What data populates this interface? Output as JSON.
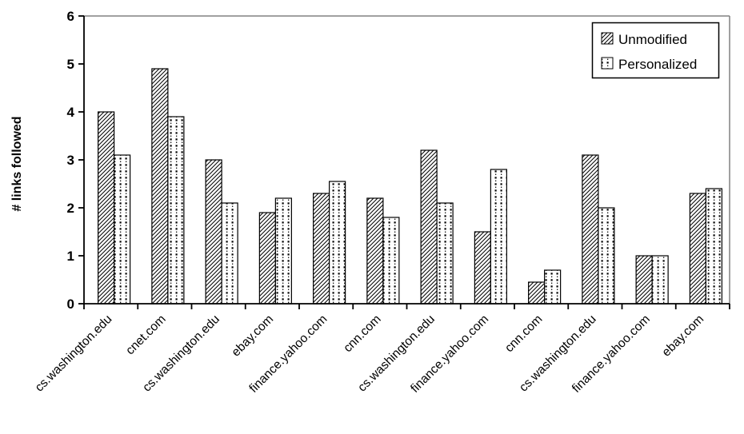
{
  "chart_data": {
    "type": "bar",
    "title": "",
    "xlabel": "",
    "ylabel": "# links followed",
    "ylim": [
      0,
      6
    ],
    "yticks": [
      0,
      1,
      2,
      3,
      4,
      5,
      6
    ],
    "grid": false,
    "legend_position": "top-right",
    "categories": [
      "cs.washington.edu",
      "cnet.com",
      "cs.washington.edu",
      "ebay.com",
      "finance.yahoo.com",
      "cnn.com",
      "cs.washington.edu",
      "finance.yahoo.com",
      "cnn.com",
      "cs.washington.edu",
      "finance.yahoo.com",
      "ebay.com"
    ],
    "series": [
      {
        "name": "Unmodified",
        "pattern": "diagonal-hatch",
        "values": [
          4.0,
          4.9,
          3.0,
          1.9,
          2.3,
          2.2,
          3.2,
          1.5,
          0.45,
          3.1,
          1.0,
          2.3
        ]
      },
      {
        "name": "Personalized",
        "pattern": "dots",
        "values": [
          3.1,
          3.9,
          2.1,
          2.2,
          2.55,
          1.8,
          2.1,
          2.8,
          0.7,
          2.0,
          1.0,
          2.4
        ]
      }
    ]
  },
  "colors": {
    "background": "#ffffff",
    "axis": "#000000",
    "plot_border_gray": "#808080",
    "bar_fill": "#ffffff",
    "bar_border": "#000000",
    "text": "#000000"
  }
}
